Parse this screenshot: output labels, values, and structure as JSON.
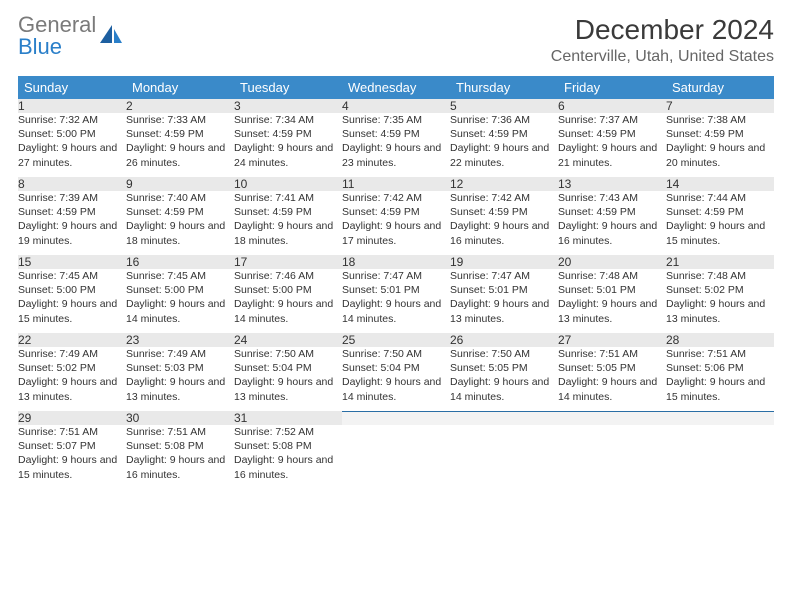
{
  "logo": {
    "line1": "General",
    "line2": "Blue"
  },
  "title": "December 2024",
  "location": "Centerville, Utah, United States",
  "colors": {
    "header_bg": "#3a8ac9",
    "header_border": "#2a6ea5",
    "daynum_bg": "#e9e9e9",
    "text": "#333333",
    "logo_gray": "#7a7a7a",
    "logo_blue": "#2a7fc9"
  },
  "day_headers": [
    "Sunday",
    "Monday",
    "Tuesday",
    "Wednesday",
    "Thursday",
    "Friday",
    "Saturday"
  ],
  "weeks": [
    [
      {
        "n": "1",
        "sr": "7:32 AM",
        "ss": "5:00 PM",
        "dl": "9 hours and 27 minutes."
      },
      {
        "n": "2",
        "sr": "7:33 AM",
        "ss": "4:59 PM",
        "dl": "9 hours and 26 minutes."
      },
      {
        "n": "3",
        "sr": "7:34 AM",
        "ss": "4:59 PM",
        "dl": "9 hours and 24 minutes."
      },
      {
        "n": "4",
        "sr": "7:35 AM",
        "ss": "4:59 PM",
        "dl": "9 hours and 23 minutes."
      },
      {
        "n": "5",
        "sr": "7:36 AM",
        "ss": "4:59 PM",
        "dl": "9 hours and 22 minutes."
      },
      {
        "n": "6",
        "sr": "7:37 AM",
        "ss": "4:59 PM",
        "dl": "9 hours and 21 minutes."
      },
      {
        "n": "7",
        "sr": "7:38 AM",
        "ss": "4:59 PM",
        "dl": "9 hours and 20 minutes."
      }
    ],
    [
      {
        "n": "8",
        "sr": "7:39 AM",
        "ss": "4:59 PM",
        "dl": "9 hours and 19 minutes."
      },
      {
        "n": "9",
        "sr": "7:40 AM",
        "ss": "4:59 PM",
        "dl": "9 hours and 18 minutes."
      },
      {
        "n": "10",
        "sr": "7:41 AM",
        "ss": "4:59 PM",
        "dl": "9 hours and 18 minutes."
      },
      {
        "n": "11",
        "sr": "7:42 AM",
        "ss": "4:59 PM",
        "dl": "9 hours and 17 minutes."
      },
      {
        "n": "12",
        "sr": "7:42 AM",
        "ss": "4:59 PM",
        "dl": "9 hours and 16 minutes."
      },
      {
        "n": "13",
        "sr": "7:43 AM",
        "ss": "4:59 PM",
        "dl": "9 hours and 16 minutes."
      },
      {
        "n": "14",
        "sr": "7:44 AM",
        "ss": "4:59 PM",
        "dl": "9 hours and 15 minutes."
      }
    ],
    [
      {
        "n": "15",
        "sr": "7:45 AM",
        "ss": "5:00 PM",
        "dl": "9 hours and 15 minutes."
      },
      {
        "n": "16",
        "sr": "7:45 AM",
        "ss": "5:00 PM",
        "dl": "9 hours and 14 minutes."
      },
      {
        "n": "17",
        "sr": "7:46 AM",
        "ss": "5:00 PM",
        "dl": "9 hours and 14 minutes."
      },
      {
        "n": "18",
        "sr": "7:47 AM",
        "ss": "5:01 PM",
        "dl": "9 hours and 14 minutes."
      },
      {
        "n": "19",
        "sr": "7:47 AM",
        "ss": "5:01 PM",
        "dl": "9 hours and 13 minutes."
      },
      {
        "n": "20",
        "sr": "7:48 AM",
        "ss": "5:01 PM",
        "dl": "9 hours and 13 minutes."
      },
      {
        "n": "21",
        "sr": "7:48 AM",
        "ss": "5:02 PM",
        "dl": "9 hours and 13 minutes."
      }
    ],
    [
      {
        "n": "22",
        "sr": "7:49 AM",
        "ss": "5:02 PM",
        "dl": "9 hours and 13 minutes."
      },
      {
        "n": "23",
        "sr": "7:49 AM",
        "ss": "5:03 PM",
        "dl": "9 hours and 13 minutes."
      },
      {
        "n": "24",
        "sr": "7:50 AM",
        "ss": "5:04 PM",
        "dl": "9 hours and 13 minutes."
      },
      {
        "n": "25",
        "sr": "7:50 AM",
        "ss": "5:04 PM",
        "dl": "9 hours and 14 minutes."
      },
      {
        "n": "26",
        "sr": "7:50 AM",
        "ss": "5:05 PM",
        "dl": "9 hours and 14 minutes."
      },
      {
        "n": "27",
        "sr": "7:51 AM",
        "ss": "5:05 PM",
        "dl": "9 hours and 14 minutes."
      },
      {
        "n": "28",
        "sr": "7:51 AM",
        "ss": "5:06 PM",
        "dl": "9 hours and 15 minutes."
      }
    ],
    [
      {
        "n": "29",
        "sr": "7:51 AM",
        "ss": "5:07 PM",
        "dl": "9 hours and 15 minutes."
      },
      {
        "n": "30",
        "sr": "7:51 AM",
        "ss": "5:08 PM",
        "dl": "9 hours and 16 minutes."
      },
      {
        "n": "31",
        "sr": "7:52 AM",
        "ss": "5:08 PM",
        "dl": "9 hours and 16 minutes."
      },
      null,
      null,
      null,
      null
    ]
  ],
  "labels": {
    "sunrise": "Sunrise:",
    "sunset": "Sunset:",
    "daylight": "Daylight:"
  }
}
